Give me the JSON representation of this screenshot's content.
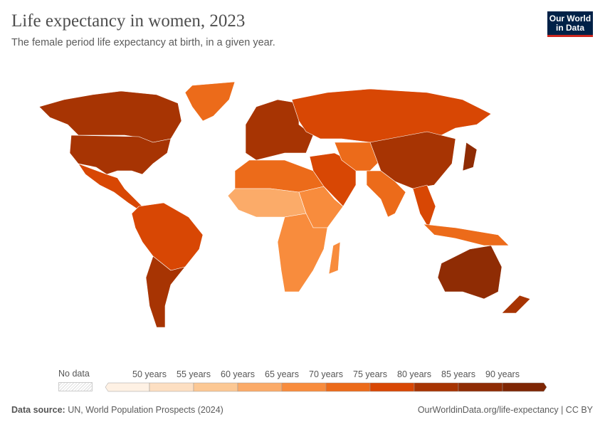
{
  "header": {
    "title": "Life expectancy in women, 2023",
    "subtitle": "The female period life expectancy at birth, in a given year.",
    "logo": "Our World in Data"
  },
  "legend": {
    "no_data_label": "No data",
    "ticks": [
      "50 years",
      "55 years",
      "60 years",
      "65 years",
      "70 years",
      "75 years",
      "80 years",
      "85 years",
      "90 years"
    ],
    "colors": [
      "#fef1e4",
      "#fddfc2",
      "#fcc894",
      "#fbab69",
      "#f88c3d",
      "#ec6b1a",
      "#d84704",
      "#a73403",
      "#8f2c04",
      "#7e2604"
    ]
  },
  "footer": {
    "source_label": "Data source:",
    "source": "UN, World Population Prospects (2024)",
    "link": "OurWorldinData.org/life-expectancy | CC BY"
  }
}
